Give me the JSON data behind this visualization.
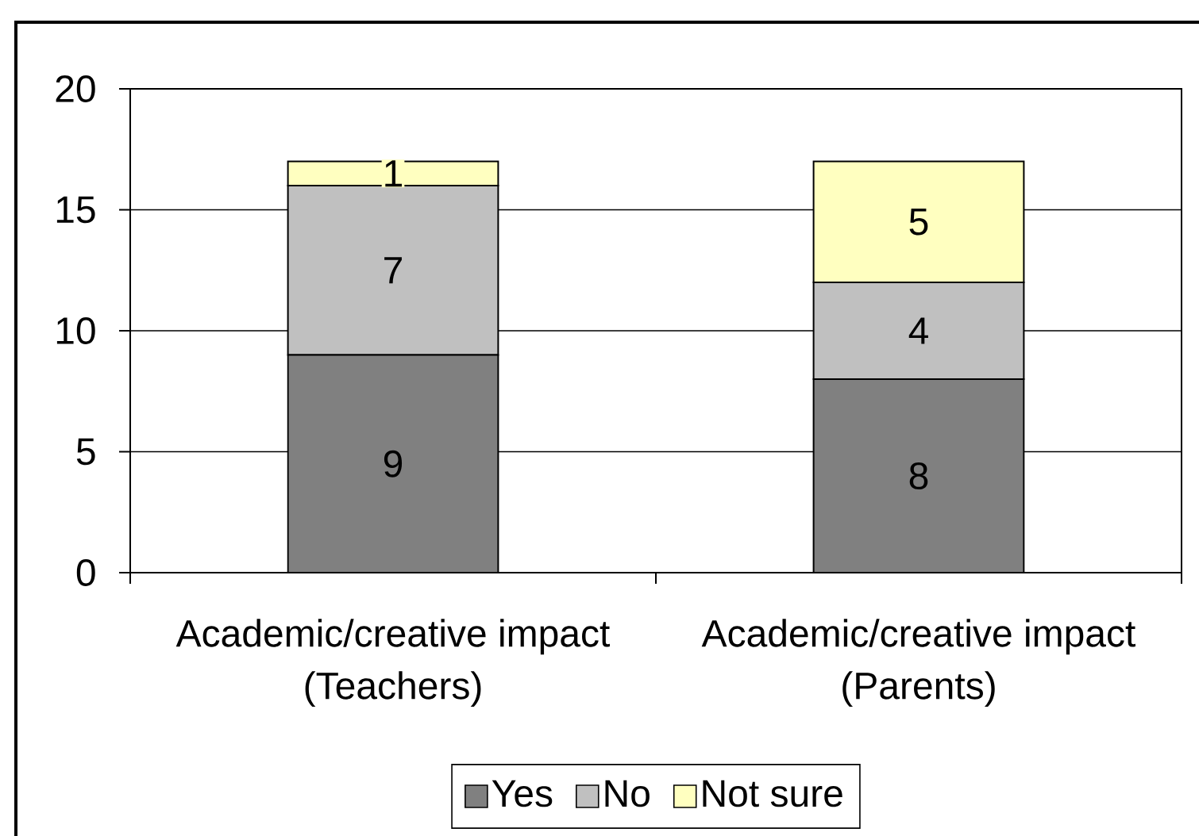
{
  "chart_data": {
    "type": "bar",
    "stacked": true,
    "categories": [
      "Academic/creative impact (Teachers)",
      "Academic/creative impact (Parents)"
    ],
    "series": [
      {
        "name": "Yes",
        "color": "#808080",
        "values": [
          9,
          8
        ]
      },
      {
        "name": "No",
        "color": "#c0c0c0",
        "values": [
          7,
          4
        ]
      },
      {
        "name": "Not sure",
        "color": "#ffffc0",
        "values": [
          1,
          5
        ]
      }
    ],
    "ylim": [
      0,
      20
    ],
    "yticks": [
      0,
      5,
      10,
      15,
      20
    ],
    "grid": "y",
    "legend": "bottom",
    "data_labels": true
  }
}
